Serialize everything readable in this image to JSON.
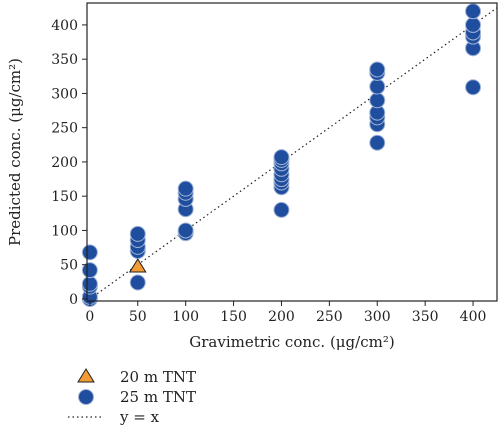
{
  "chart_data": {
    "type": "scatter",
    "xlabel": "Gravimetric conc. (μg/cm²)",
    "ylabel": "Predicted conc. (μg/cm²)",
    "xlim": [
      -3,
      425
    ],
    "ylim": [
      -3,
      432
    ],
    "x_ticks": [
      "0",
      "50",
      "100",
      "150",
      "200",
      "250",
      "300",
      "350",
      "400"
    ],
    "y_ticks": [
      "0",
      "50",
      "100",
      "150",
      "200",
      "250",
      "300",
      "350",
      "400"
    ],
    "x_tick_values": [
      0,
      50,
      100,
      150,
      200,
      250,
      300,
      350,
      400
    ],
    "y_tick_values": [
      0,
      50,
      100,
      150,
      200,
      250,
      300,
      350,
      400
    ],
    "grid": false,
    "legend_position": "below",
    "series": [
      {
        "name": "20 m TNT",
        "marker": "triangle",
        "color": "#f39c34",
        "edge": "#222222",
        "points": [
          [
            50,
            48
          ]
        ]
      },
      {
        "name": "25 m TNT",
        "marker": "circle",
        "color": "#1f4e9e",
        "edge": "#9fb3d6",
        "points": [
          [
            0,
            0
          ],
          [
            0,
            3
          ],
          [
            0,
            18
          ],
          [
            0,
            22
          ],
          [
            0,
            42
          ],
          [
            0,
            68
          ],
          [
            50,
            24
          ],
          [
            50,
            70
          ],
          [
            50,
            76
          ],
          [
            50,
            86
          ],
          [
            50,
            95
          ],
          [
            100,
            96
          ],
          [
            100,
            100
          ],
          [
            100,
            131
          ],
          [
            100,
            146
          ],
          [
            100,
            155
          ],
          [
            100,
            161
          ],
          [
            200,
            130
          ],
          [
            200,
            163
          ],
          [
            200,
            170
          ],
          [
            200,
            175
          ],
          [
            200,
            182
          ],
          [
            200,
            190
          ],
          [
            200,
            198
          ],
          [
            200,
            203
          ],
          [
            200,
            207
          ],
          [
            300,
            228
          ],
          [
            300,
            255
          ],
          [
            300,
            265
          ],
          [
            300,
            272
          ],
          [
            300,
            290
          ],
          [
            300,
            310
          ],
          [
            300,
            330
          ],
          [
            300,
            335
          ],
          [
            400,
            309
          ],
          [
            400,
            366
          ],
          [
            400,
            383
          ],
          [
            400,
            389
          ],
          [
            400,
            400
          ],
          [
            400,
            420
          ]
        ]
      },
      {
        "name": "y = x",
        "marker": "dotted-line",
        "color": "#222222",
        "points": [
          [
            0,
            0
          ],
          [
            425,
            425
          ]
        ]
      }
    ]
  },
  "legend": {
    "item_triangle": "20 m TNT",
    "item_circle": "25 m TNT",
    "item_line": "y = x"
  }
}
